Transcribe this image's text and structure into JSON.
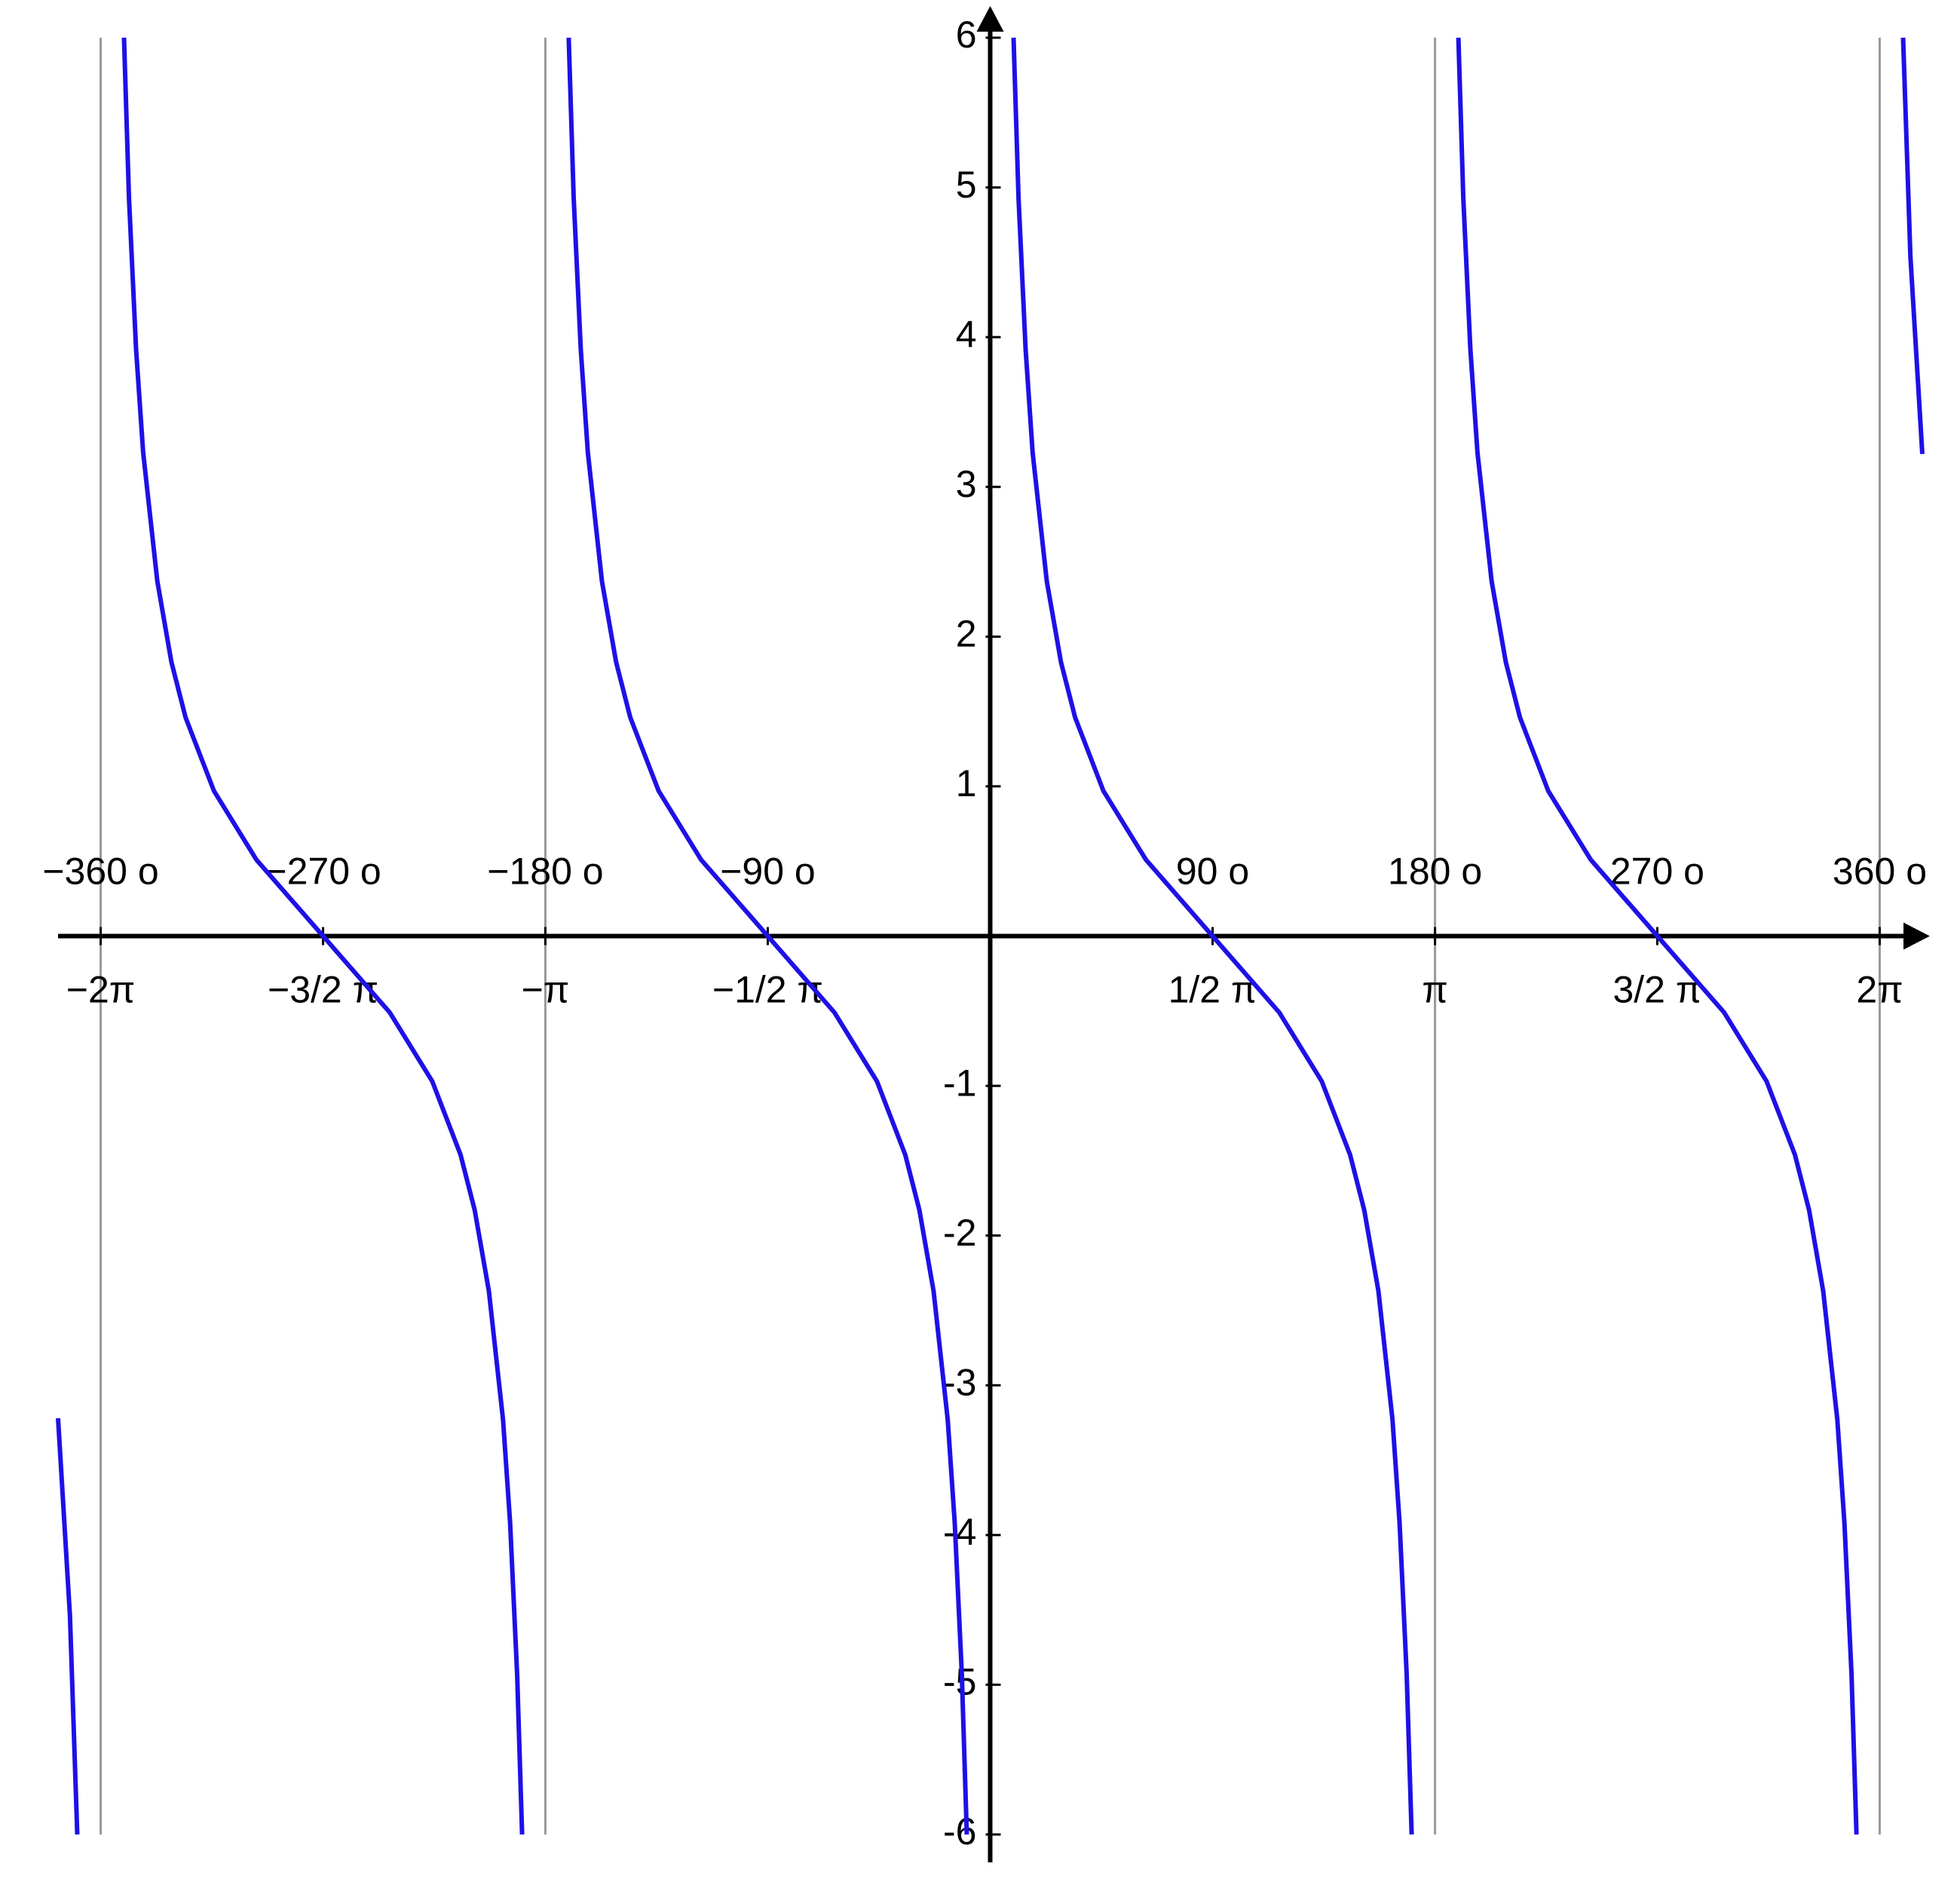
{
  "chart_data": {
    "type": "line",
    "x": [
      -6.584,
      -6.5,
      -6.448,
      -6.283,
      -6.118,
      -6.083,
      -6.033,
      -5.983,
      -5.883,
      -5.783,
      -5.683,
      -5.483,
      -5.183,
      -4.712,
      -4.241,
      -3.941,
      -3.741,
      -3.641,
      -3.541,
      -3.441,
      -3.391,
      -3.341,
      -3.306,
      -3.142,
      -2.977,
      -2.942,
      -2.892,
      -2.842,
      -2.742,
      -2.642,
      -2.542,
      -2.342,
      -2.042,
      -1.571,
      -1.1,
      -0.8,
      -0.6,
      -0.5,
      -0.4,
      -0.3,
      -0.25,
      -0.2,
      -0.165,
      0,
      0.165,
      0.2,
      0.25,
      0.3,
      0.4,
      0.5,
      0.6,
      0.8,
      1.1,
      1.571,
      2.042,
      2.342,
      2.542,
      2.642,
      2.742,
      2.842,
      2.892,
      2.942,
      2.977,
      3.142,
      3.307,
      3.342,
      3.392,
      3.442,
      3.542,
      3.642,
      3.742,
      3.942,
      4.242,
      4.713,
      5.184,
      5.484,
      5.684,
      5.784,
      5.884,
      5.984,
      6.034,
      6.084,
      6.119,
      6.283,
      6.448,
      6.5,
      6.584
    ],
    "series": [
      {
        "color": "#1f10e6",
        "values": [
          -3.22,
          -4.54,
          -6,
          null,
          6,
          4.93,
          3.92,
          3.23,
          2.37,
          1.83,
          1.46,
          0.97,
          0.51,
          0,
          -0.51,
          -0.97,
          -1.46,
          -1.83,
          -2.37,
          -3.23,
          -3.92,
          -4.93,
          -6,
          null,
          6,
          4.93,
          3.92,
          3.23,
          2.37,
          1.83,
          1.46,
          0.97,
          0.51,
          0,
          -0.51,
          -0.97,
          -1.46,
          -1.83,
          -2.37,
          -3.23,
          -3.92,
          -4.93,
          -6,
          null,
          6,
          4.93,
          3.92,
          3.23,
          2.37,
          1.83,
          1.46,
          0.97,
          0.51,
          0,
          -0.51,
          -0.97,
          -1.46,
          -1.83,
          -2.37,
          -3.23,
          -3.92,
          -4.93,
          -6,
          null,
          6,
          4.93,
          3.92,
          3.23,
          2.37,
          1.83,
          1.46,
          0.97,
          0.51,
          0,
          -0.51,
          -0.97,
          -1.46,
          -1.83,
          -2.37,
          -3.23,
          -3.92,
          -4.93,
          -6,
          null,
          6,
          4.54,
          3.22
        ]
      }
    ],
    "xlim": [
      -6.584,
      6.584
    ],
    "ylim": [
      -6,
      6
    ],
    "xticks": [
      {
        "value": -6.283,
        "label": "−2π"
      },
      {
        "value": -4.712,
        "label": "−3/2 π"
      },
      {
        "value": -3.142,
        "label": "−π"
      },
      {
        "value": -1.571,
        "label": "−1/2 π"
      },
      {
        "value": 1.571,
        "label": "1/2 π"
      },
      {
        "value": 3.142,
        "label": "π"
      },
      {
        "value": 4.712,
        "label": "3/2 π"
      },
      {
        "value": 6.283,
        "label": "2π"
      }
    ],
    "xticks_degrees": [
      {
        "value": -6.283,
        "label": "−360 o"
      },
      {
        "value": -4.712,
        "label": "−270 o"
      },
      {
        "value": -3.142,
        "label": "−180 o"
      },
      {
        "value": -1.571,
        "label": "−90 o"
      },
      {
        "value": 1.571,
        "label": "90 o"
      },
      {
        "value": 3.142,
        "label": "180 o"
      },
      {
        "value": 4.712,
        "label": "270 o"
      },
      {
        "value": 6.283,
        "label": "360 o"
      }
    ],
    "yticks": [
      -6,
      -5,
      -4,
      -3,
      -2,
      -1,
      1,
      2,
      3,
      4,
      5,
      6
    ],
    "asymptotes": [
      -6.283,
      -3.142,
      3.142,
      6.283
    ]
  }
}
